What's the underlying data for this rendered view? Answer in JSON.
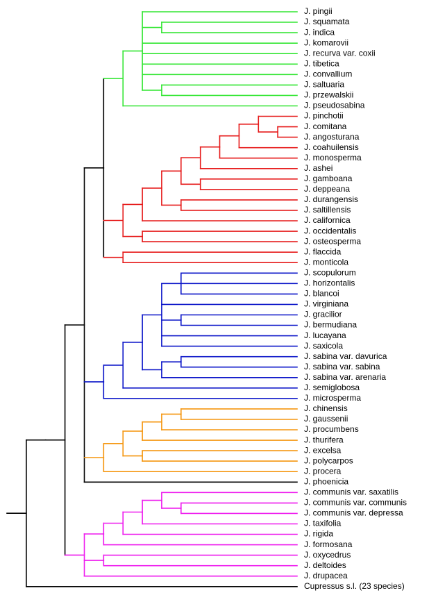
{
  "colors": {
    "root": "#000000",
    "green": "#33e633",
    "red": "#e61a1a",
    "blue": "#0a14c8",
    "orange": "#f5960f",
    "magenta": "#ee1aee"
  },
  "tree": {
    "color": "root",
    "children": [
      {
        "color": "root",
        "children": [
          {
            "color": "root",
            "children": [
              {
                "color": "root",
                "children": [
                  {
                    "color": "root",
                    "children": [
                      {
                        "color": "green",
                        "children": [
                          {
                            "children": [
                              {
                                "label": "J. pingii"
                              },
                              {
                                "children": [
                                  {
                                    "label": "J. squamata"
                                  },
                                  {
                                    "label": "J. indica"
                                  }
                                ]
                              },
                              {
                                "label": "J. komarovii"
                              },
                              {
                                "label": "J. recurva var. coxii"
                              },
                              {
                                "label": "J. tibetica"
                              },
                              {
                                "label": "J. convallium"
                              },
                              {
                                "children": [
                                  {
                                    "label": "J. saltuaria"
                                  },
                                  {
                                    "label": "J. przewalskii"
                                  }
                                ]
                              }
                            ]
                          },
                          {
                            "label": "J. pseudosabina"
                          }
                        ]
                      },
                      {
                        "color": "red",
                        "children": [
                          {
                            "children": [
                              {
                                "children": [
                                  {
                                    "children": [
                                      {
                                        "children": [
                                          {
                                            "children": [
                                              {
                                                "children": [
                                                  {
                                                    "children": [
                                                      {
                                                        "label": "J. pinchotii"
                                                      },
                                                      {
                                                        "children": [
                                                          {
                                                            "label": "J. comitana"
                                                          },
                                                          {
                                                            "label": "J. angosturana"
                                                          }
                                                        ]
                                                      }
                                                    ]
                                                  },
                                                  {
                                                    "label": "J. coahuilensis"
                                                  }
                                                ]
                                              },
                                              {
                                                "label": "J. monosperma"
                                              }
                                            ]
                                          },
                                          {
                                            "label": "J. ashei"
                                          }
                                        ]
                                      },
                                      {
                                        "children": [
                                          {
                                            "label": "J. gamboana"
                                          },
                                          {
                                            "label": "J. deppeana"
                                          }
                                        ]
                                      }
                                    ]
                                  },
                                  {
                                    "children": [
                                      {
                                        "label": "J. durangensis"
                                      },
                                      {
                                        "label": "J. saltillensis"
                                      }
                                    ]
                                  }
                                ]
                              },
                              {
                                "label": "J. californica"
                              }
                            ]
                          },
                          {
                            "children": [
                              {
                                "label": "J. occidentalis"
                              },
                              {
                                "label": "J. osteosperma"
                              }
                            ]
                          }
                        ]
                      },
                      {
                        "color": "red",
                        "children": [
                          {
                            "label": "J. flaccida"
                          },
                          {
                            "label": "J. monticola"
                          }
                        ]
                      }
                    ]
                  },
                  {
                    "color": "blue",
                    "children": [
                      {
                        "children": [
                          {
                            "children": [
                              {
                                "children": [
                                  {
                                    "children": [
                                      {
                                        "label": "J. scopulorum"
                                      },
                                      {
                                        "label": "J. horizontalis"
                                      },
                                      {
                                        "label": "J. blancoi"
                                      }
                                    ]
                                  },
                                  {
                                    "label": "J. virginiana"
                                  },
                                  {
                                    "children": [
                                      {
                                        "label": "J. gracilior"
                                      },
                                      {
                                        "label": "J. bermudiana"
                                      }
                                    ]
                                  },
                                  {
                                    "label": "J. lucayana"
                                  },
                                  {
                                    "label": "J. saxicola"
                                  }
                                ]
                              },
                              {
                                "children": [
                                  {
                                    "children": [
                                      {
                                        "label": "J. sabina var. davurica"
                                      },
                                      {
                                        "label": "J. sabina var. sabina"
                                      }
                                    ]
                                  },
                                  {
                                    "label": "J. sabina var. arenaria"
                                  }
                                ]
                              }
                            ]
                          },
                          {
                            "label": "J. semiglobosa"
                          }
                        ]
                      },
                      {
                        "label": "J. microsperma"
                      }
                    ]
                  },
                  {
                    "color": "orange",
                    "children": [
                      {
                        "children": [
                          {
                            "children": [
                              {
                                "children": [
                                  {
                                    "children": [
                                      {
                                        "label": "J. chinensis"
                                      },
                                      {
                                        "label": "J. gaussenii"
                                      }
                                    ]
                                  },
                                  {
                                    "label": "J. procumbens"
                                  }
                                ]
                              },
                              {
                                "label": "J. thurifera"
                              }
                            ]
                          },
                          {
                            "children": [
                              {
                                "label": "J. excelsa"
                              },
                              {
                                "label": "J. polycarpos"
                              }
                            ]
                          }
                        ]
                      },
                      {
                        "label": "J. procera"
                      }
                    ]
                  },
                  {
                    "label": "J. phoenicia"
                  }
                ]
              },
              {
                "color": "magenta",
                "children": [
                  {
                    "children": [
                      {
                        "children": [
                          {
                            "children": [
                              {
                                "children": [
                                  {
                                    "label": "J. communis var. saxatilis"
                                  },
                                  {
                                    "children": [
                                      {
                                        "label": "J. communis var. communis"
                                      },
                                      {
                                        "label": "J. communis var. depressa"
                                      }
                                    ]
                                  }
                                ]
                              },
                              {
                                "label": "J. taxifolia"
                              }
                            ]
                          },
                          {
                            "label": "J. rigida"
                          }
                        ]
                      },
                      {
                        "label": "J. formosana"
                      }
                    ]
                  },
                  {
                    "children": [
                      {
                        "label": "J. oxycedrus"
                      },
                      {
                        "label": "J. deltoides"
                      }
                    ]
                  },
                  {
                    "label": "J. drupacea"
                  }
                ]
              }
            ]
          }
        ]
      },
      {
        "label": "Cupressus s.l. (23 species)"
      }
    ]
  }
}
